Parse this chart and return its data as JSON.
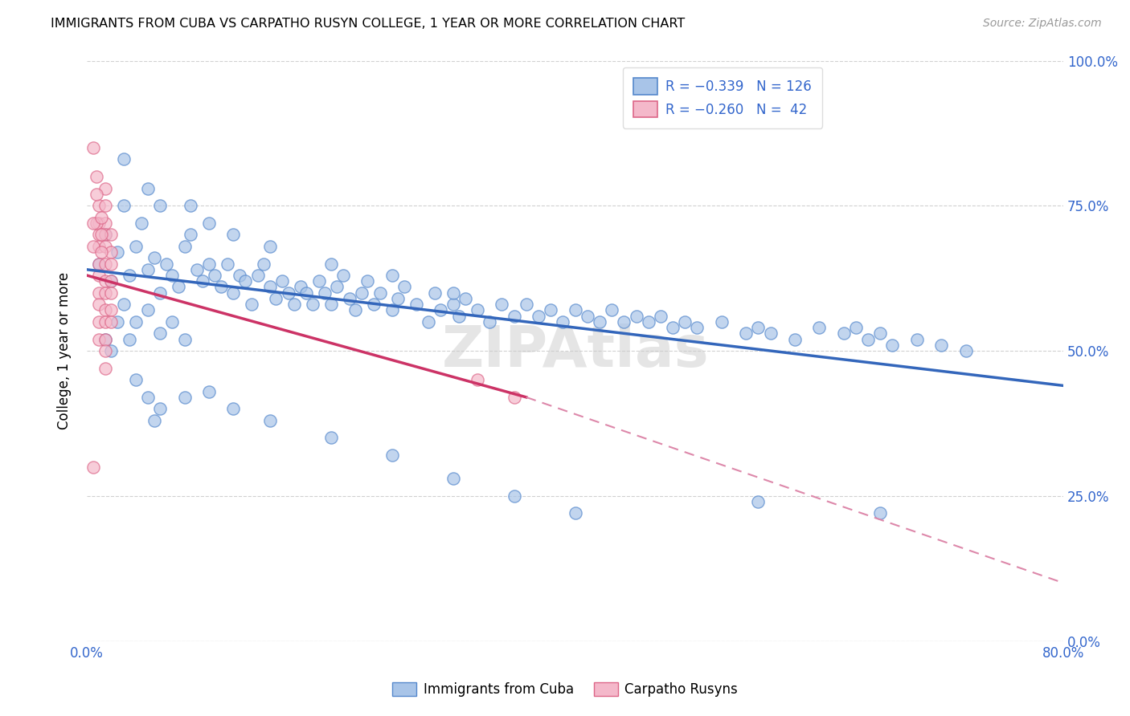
{
  "title": "IMMIGRANTS FROM CUBA VS CARPATHO RUSYN COLLEGE, 1 YEAR OR MORE CORRELATION CHART",
  "source": "Source: ZipAtlas.com",
  "ylabel": "College, 1 year or more",
  "legend_label_blue": "Immigrants from Cuba",
  "legend_label_pink": "Carpatho Rusyns",
  "watermark": "ZIPAtlas",
  "blue_fill": "#a8c4e8",
  "pink_fill": "#f4b8ca",
  "blue_edge": "#5588cc",
  "pink_edge": "#dd6688",
  "blue_line": "#3366bb",
  "pink_line": "#cc3366",
  "pink_dash": "#dd88aa",
  "text_blue": "#3366cc",
  "blue_scatter": [
    [
      1.0,
      65.0
    ],
    [
      1.5,
      70.0
    ],
    [
      2.0,
      62.0
    ],
    [
      2.5,
      67.0
    ],
    [
      3.0,
      75.0
    ],
    [
      3.5,
      63.0
    ],
    [
      4.0,
      68.0
    ],
    [
      4.5,
      72.0
    ],
    [
      5.0,
      64.0
    ],
    [
      5.5,
      66.0
    ],
    [
      6.0,
      60.0
    ],
    [
      6.5,
      65.0
    ],
    [
      7.0,
      63.0
    ],
    [
      7.5,
      61.0
    ],
    [
      8.0,
      68.0
    ],
    [
      8.5,
      70.0
    ],
    [
      9.0,
      64.0
    ],
    [
      9.5,
      62.0
    ],
    [
      10.0,
      65.0
    ],
    [
      10.5,
      63.0
    ],
    [
      11.0,
      61.0
    ],
    [
      11.5,
      65.0
    ],
    [
      12.0,
      60.0
    ],
    [
      12.5,
      63.0
    ],
    [
      13.0,
      62.0
    ],
    [
      13.5,
      58.0
    ],
    [
      14.0,
      63.0
    ],
    [
      14.5,
      65.0
    ],
    [
      15.0,
      61.0
    ],
    [
      15.5,
      59.0
    ],
    [
      16.0,
      62.0
    ],
    [
      16.5,
      60.0
    ],
    [
      17.0,
      58.0
    ],
    [
      17.5,
      61.0
    ],
    [
      18.0,
      60.0
    ],
    [
      18.5,
      58.0
    ],
    [
      19.0,
      62.0
    ],
    [
      19.5,
      60.0
    ],
    [
      20.0,
      58.0
    ],
    [
      20.5,
      61.0
    ],
    [
      21.0,
      63.0
    ],
    [
      21.5,
      59.0
    ],
    [
      22.0,
      57.0
    ],
    [
      22.5,
      60.0
    ],
    [
      23.0,
      62.0
    ],
    [
      23.5,
      58.0
    ],
    [
      24.0,
      60.0
    ],
    [
      25.0,
      57.0
    ],
    [
      25.5,
      59.0
    ],
    [
      26.0,
      61.0
    ],
    [
      27.0,
      58.0
    ],
    [
      28.0,
      55.0
    ],
    [
      28.5,
      60.0
    ],
    [
      29.0,
      57.0
    ],
    [
      30.0,
      58.0
    ],
    [
      30.5,
      56.0
    ],
    [
      31.0,
      59.0
    ],
    [
      32.0,
      57.0
    ],
    [
      33.0,
      55.0
    ],
    [
      34.0,
      58.0
    ],
    [
      35.0,
      56.0
    ],
    [
      36.0,
      58.0
    ],
    [
      37.0,
      56.0
    ],
    [
      38.0,
      57.0
    ],
    [
      39.0,
      55.0
    ],
    [
      40.0,
      57.0
    ],
    [
      41.0,
      56.0
    ],
    [
      42.0,
      55.0
    ],
    [
      43.0,
      57.0
    ],
    [
      44.0,
      55.0
    ],
    [
      45.0,
      56.0
    ],
    [
      46.0,
      55.0
    ],
    [
      47.0,
      56.0
    ],
    [
      48.0,
      54.0
    ],
    [
      49.0,
      55.0
    ],
    [
      50.0,
      54.0
    ],
    [
      52.0,
      55.0
    ],
    [
      54.0,
      53.0
    ],
    [
      55.0,
      54.0
    ],
    [
      56.0,
      53.0
    ],
    [
      58.0,
      52.0
    ],
    [
      60.0,
      54.0
    ],
    [
      62.0,
      53.0
    ],
    [
      63.0,
      54.0
    ],
    [
      64.0,
      52.0
    ],
    [
      65.0,
      53.0
    ],
    [
      66.0,
      51.0
    ],
    [
      68.0,
      52.0
    ],
    [
      70.0,
      51.0
    ],
    [
      72.0,
      50.0
    ],
    [
      3.0,
      83.0
    ],
    [
      5.0,
      78.0
    ],
    [
      6.0,
      75.0
    ],
    [
      8.5,
      75.0
    ],
    [
      10.0,
      72.0
    ],
    [
      12.0,
      70.0
    ],
    [
      15.0,
      68.0
    ],
    [
      20.0,
      65.0
    ],
    [
      25.0,
      63.0
    ],
    [
      30.0,
      60.0
    ],
    [
      4.0,
      45.0
    ],
    [
      5.0,
      42.0
    ],
    [
      5.5,
      38.0
    ],
    [
      6.0,
      40.0
    ],
    [
      8.0,
      42.0
    ],
    [
      10.0,
      43.0
    ],
    [
      12.0,
      40.0
    ],
    [
      15.0,
      38.0
    ],
    [
      20.0,
      35.0
    ],
    [
      25.0,
      32.0
    ],
    [
      30.0,
      28.0
    ],
    [
      35.0,
      25.0
    ],
    [
      40.0,
      22.0
    ],
    [
      55.0,
      24.0
    ],
    [
      65.0,
      22.0
    ],
    [
      1.5,
      52.0
    ],
    [
      2.0,
      50.0
    ],
    [
      2.5,
      55.0
    ],
    [
      3.0,
      58.0
    ],
    [
      3.5,
      52.0
    ],
    [
      4.0,
      55.0
    ],
    [
      5.0,
      57.0
    ],
    [
      6.0,
      53.0
    ],
    [
      7.0,
      55.0
    ],
    [
      8.0,
      52.0
    ]
  ],
  "pink_scatter": [
    [
      1.0,
      75.0
    ],
    [
      1.0,
      72.0
    ],
    [
      1.0,
      70.0
    ],
    [
      1.0,
      68.0
    ],
    [
      1.0,
      65.0
    ],
    [
      1.0,
      63.0
    ],
    [
      1.0,
      60.0
    ],
    [
      1.0,
      58.0
    ],
    [
      1.0,
      55.0
    ],
    [
      1.0,
      52.0
    ],
    [
      1.5,
      78.0
    ],
    [
      1.5,
      75.0
    ],
    [
      1.5,
      72.0
    ],
    [
      1.5,
      70.0
    ],
    [
      1.5,
      68.0
    ],
    [
      1.5,
      65.0
    ],
    [
      1.5,
      62.0
    ],
    [
      1.5,
      60.0
    ],
    [
      1.5,
      57.0
    ],
    [
      1.5,
      55.0
    ],
    [
      1.5,
      52.0
    ],
    [
      1.5,
      50.0
    ],
    [
      1.5,
      47.0
    ],
    [
      2.0,
      70.0
    ],
    [
      2.0,
      67.0
    ],
    [
      2.0,
      65.0
    ],
    [
      2.0,
      62.0
    ],
    [
      2.0,
      60.0
    ],
    [
      2.0,
      57.0
    ],
    [
      2.0,
      55.0
    ],
    [
      0.5,
      85.0
    ],
    [
      0.8,
      80.0
    ],
    [
      0.8,
      77.0
    ],
    [
      0.8,
      72.0
    ],
    [
      0.5,
      72.0
    ],
    [
      0.5,
      68.0
    ],
    [
      1.2,
      73.0
    ],
    [
      1.2,
      70.0
    ],
    [
      1.2,
      67.0
    ],
    [
      0.5,
      30.0
    ],
    [
      32.0,
      45.0
    ],
    [
      35.0,
      42.0
    ]
  ],
  "xlim": [
    0,
    80
  ],
  "ylim": [
    0,
    100
  ],
  "blue_line_start_x": 0,
  "blue_line_end_x": 80,
  "blue_line_start_y": 64,
  "blue_line_end_y": 44,
  "pink_line_start_x": 0,
  "pink_line_end_x": 36,
  "pink_line_start_y": 63,
  "pink_line_end_y": 42,
  "pink_dash_start_x": 36,
  "pink_dash_end_x": 80,
  "pink_dash_start_y": 42,
  "pink_dash_end_y": 10,
  "background_color": "#ffffff"
}
